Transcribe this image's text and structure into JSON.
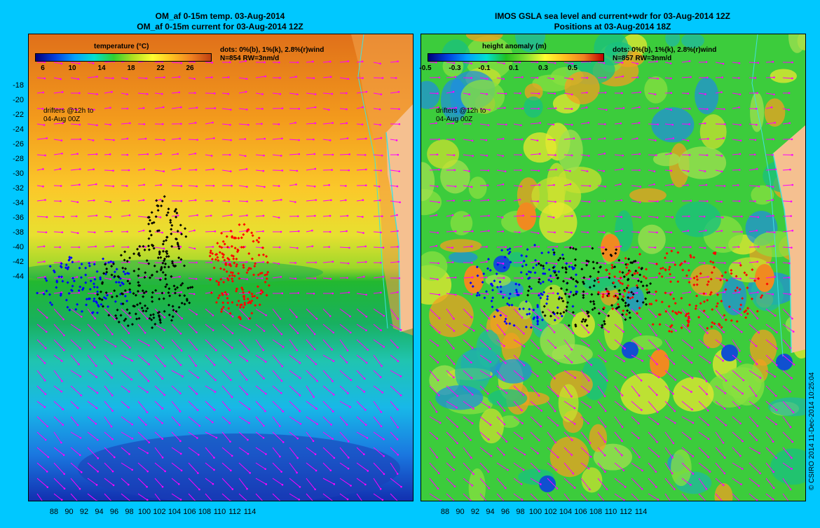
{
  "left": {
    "title_line1": "OM_af 0-15m temp. 03-Aug-2014",
    "title_line2": "OM_af 0-15m current for 03-Aug-2014 12Z",
    "colorbar_title": "temperature (°C)",
    "colorbar_ticks": [
      "6",
      "10",
      "14",
      "18",
      "22",
      "26"
    ],
    "dots_line1": "dots: 0%(b), 1%(k), 2.8%(r)wind",
    "dots_line2": "N=854 RW=3nm/d",
    "drifters_line1": "drifters @12h to",
    "drifters_line2": "04-Aug 00Z"
  },
  "right": {
    "title_line1": "IMOS GSLA sea level and current+wdr for 03-Aug-2014 12Z",
    "title_line2": "Positions at 03-Aug-2014 18Z",
    "colorbar_title": "height anomaly (m)",
    "colorbar_ticks": [
      "-0.5",
      "-0.3",
      "-0.1",
      "0.1",
      "0.3",
      "0.5"
    ],
    "dots_line1": "dots: 0%(b), 1%(k), 2.8%(r)wind",
    "dots_line2": "N=857 RW=3nm/d",
    "drifters_line1": "drifters @12h to",
    "drifters_line2": "04-Aug 00Z"
  },
  "y_ticks": [
    "-18",
    "-20",
    "-22",
    "-24",
    "-26",
    "-28",
    "-30",
    "-32",
    "-34",
    "-36",
    "-38",
    "-40",
    "-42",
    "-44"
  ],
  "x_ticks": [
    "88",
    "90",
    "92",
    "94",
    "96",
    "98",
    "100",
    "102",
    "104",
    "106",
    "108",
    "110",
    "112",
    "114"
  ],
  "copyright": "© CSIRO 2014   11-Dec-2014 10:25:04",
  "colors": {
    "background": "#00c8ff",
    "vectors": "#ff00ff",
    "coast": "#40e0e0",
    "land": "#f5c090",
    "drift_blue": "#0000ff",
    "drift_black": "#000000",
    "drift_red": "#ff0000"
  }
}
